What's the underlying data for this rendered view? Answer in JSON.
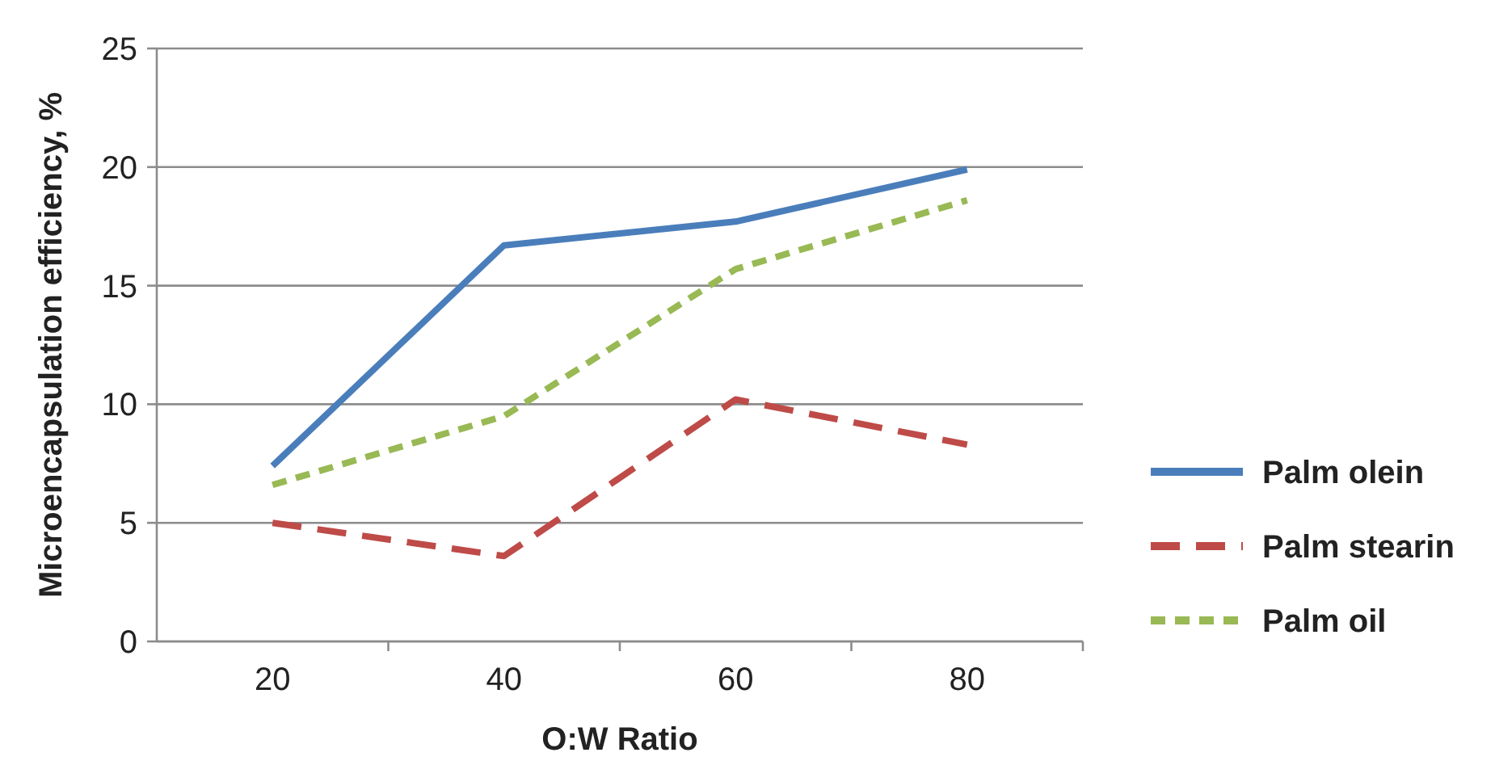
{
  "chart_data": {
    "type": "line",
    "xlabel": "O:W Ratio",
    "ylabel": "Microencapsulation efficiency, %",
    "categories": [
      "20",
      "40",
      "60",
      "80"
    ],
    "series": [
      {
        "name": "Palm olein",
        "color": "#4a7ebb",
        "line_style": "solid",
        "values": [
          7.4,
          16.7,
          17.7,
          19.9
        ]
      },
      {
        "name": "Palm stearin",
        "color": "#be4b48",
        "line_style": "dashed",
        "values": [
          5.0,
          3.6,
          10.2,
          8.3
        ]
      },
      {
        "name": "Palm oil",
        "color": "#98b954",
        "line_style": "dotted",
        "values": [
          6.6,
          9.5,
          15.7,
          18.6
        ]
      }
    ],
    "ylim": [
      0,
      25
    ],
    "yticks": [
      0,
      5,
      10,
      15,
      20,
      25
    ],
    "grid": "y",
    "legend": "right",
    "marker": "none"
  }
}
